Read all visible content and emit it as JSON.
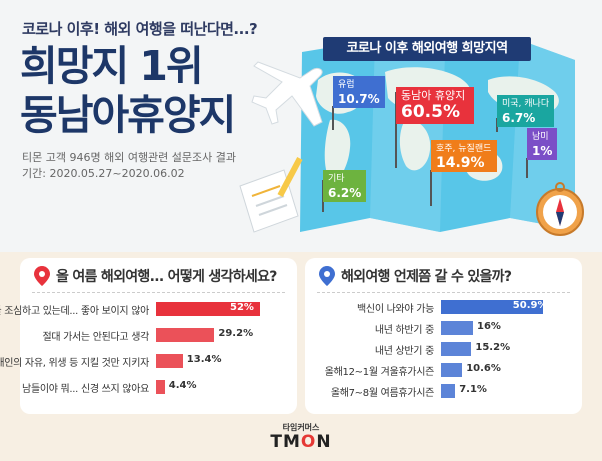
{
  "header": {
    "subtitle": "코로나 이후! 해외 여행을 떠난다면...?",
    "headline_1": "희망지 1위",
    "headline_2": "동남아휴양지",
    "source_1": "티몬 고객 946명 해외 여행관련 설문조사 결과",
    "source_2": "기간: 2020.05.27~2020.06.02"
  },
  "map": {
    "banner": "코로나 이후 해외여행 희망지역",
    "flags": [
      {
        "name": "유럽",
        "pct": "10.7%",
        "color": "#3f6fd1"
      },
      {
        "name": "동남아 휴양지",
        "pct": "60.5%",
        "color": "#e8323c"
      },
      {
        "name": "미국, 캐나다",
        "pct": "6.7%",
        "color": "#1aa6a0"
      },
      {
        "name": "호주, 뉴질랜드",
        "pct": "14.9%",
        "color": "#f07d1a"
      },
      {
        "name": "기타",
        "pct": "6.2%",
        "color": "#6db33f"
      },
      {
        "name": "남미",
        "pct": "1%",
        "color": "#7b4fc7"
      }
    ]
  },
  "chart_data": [
    {
      "type": "bar",
      "title": "올 여름 해외여행... 어떻게 생각하세요?",
      "categories": [
        "다들 조심하고 있는데... 좋아 보이지 않아",
        "절대 가서는 안된다고 생각",
        "개인의 자유, 위생 등 지킬 것만 지키자",
        "남들이야 뭐... 신경 쓰지 않아요"
      ],
      "values": [
        52,
        29.2,
        13.4,
        4.4
      ],
      "labels": [
        "52%",
        "29.2%",
        "13.4%",
        "4.4%"
      ],
      "ylim": [
        0,
        100
      ],
      "color": "#e8323c"
    },
    {
      "type": "bar",
      "title": "해외여행 언제쯤 갈 수 있을까?",
      "categories": [
        "백신이 나와야 가능",
        "내년 하반기 중",
        "내년 상반기 중",
        "올해12~1월 겨울휴가시즌",
        "올해7~8월 여름휴가시즌"
      ],
      "values": [
        50.9,
        16,
        15.2,
        10.6,
        7.1
      ],
      "labels": [
        "50.9%",
        "16%",
        "15.2%",
        "10.6%",
        "7.1%"
      ],
      "ylim": [
        0,
        100
      ],
      "color": "#3f6fd1"
    }
  ],
  "footer": {
    "small": "타임커머스",
    "logo_a": "TM",
    "logo_o": "O",
    "logo_b": "N"
  }
}
